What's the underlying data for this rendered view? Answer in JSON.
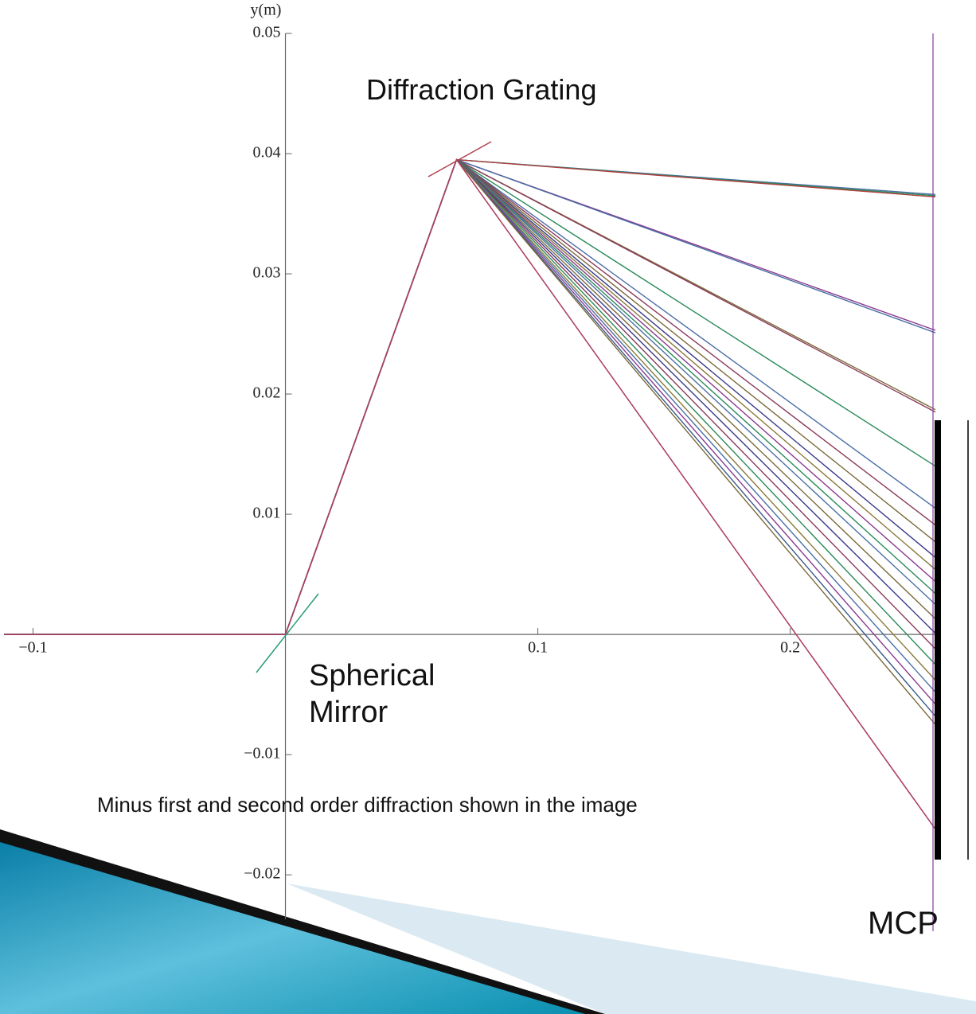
{
  "chart_data": {
    "type": "line",
    "y_label": "y(m)",
    "annotations": [
      "Diffraction Grating",
      "Spherical Mirror",
      "Minus first and second order diffraction shown in the image",
      "MCP"
    ],
    "xlim": [
      -0.1115,
      0.2575
    ],
    "ylim": [
      -0.0237,
      0.05
    ],
    "xticks": [
      {
        "value": -0.1,
        "label": "−0.1"
      },
      0.1,
      0.2
    ],
    "yticks": [
      {
        "value": -0.02,
        "label": "−0.02"
      },
      {
        "value": -0.01,
        "label": "−0.01"
      },
      0.01,
      0.02,
      0.03,
      0.04,
      0.05
    ],
    "x": [
      -0.1115,
      0,
      0.0678,
      0.2575
    ],
    "series": [
      {
        "color": "#4a6fa5",
        "values": [
          0,
          0,
          0.0395,
          0.0366
        ]
      },
      {
        "color": "#2a8a5a",
        "values": [
          0,
          0,
          0.0395,
          0.0365
        ]
      },
      {
        "color": "#b04040",
        "values": [
          0,
          0,
          0.0395,
          0.0364
        ]
      },
      {
        "color": "#8a3a8f",
        "values": [
          0,
          0,
          0.0395,
          0.0253
        ]
      },
      {
        "color": "#4a6fa5",
        "values": [
          0,
          0,
          0.0395,
          0.0251
        ]
      },
      {
        "color": "#7a6a3a",
        "values": [
          0,
          0,
          0.0395,
          0.0187
        ]
      },
      {
        "color": "#8a3a5a",
        "values": [
          0,
          0,
          0.0395,
          0.0185
        ]
      },
      {
        "color": "#2a8a5a",
        "values": [
          0,
          0,
          0.0395,
          0.014
        ]
      },
      {
        "color": "#4a6fa5",
        "values": [
          0,
          0,
          0.0395,
          0.0105
        ]
      },
      {
        "color": "#8a3a5a",
        "values": [
          0,
          0,
          0.0395,
          0.0091
        ]
      },
      {
        "color": "#7a6a3a",
        "values": [
          0,
          0,
          0.0395,
          0.0077
        ]
      },
      {
        "color": "#3a3a8a",
        "values": [
          0,
          0,
          0.0395,
          0.0064
        ]
      },
      {
        "color": "#8a7a3a",
        "values": [
          0,
          0,
          0.0395,
          0.0054
        ]
      },
      {
        "color": "#8a3a8f",
        "values": [
          0,
          0,
          0.0395,
          0.0044
        ]
      },
      {
        "color": "#2a8a5a",
        "values": [
          0,
          0,
          0.0395,
          0.0034
        ]
      },
      {
        "color": "#4a6fa5",
        "values": [
          0,
          0,
          0.0395,
          0.0025
        ]
      },
      {
        "color": "#7a6a3a",
        "values": [
          0,
          0,
          0.0395,
          0.0013
        ]
      },
      {
        "color": "#3a3a8a",
        "values": [
          0,
          0,
          0.0395,
          0.0001
        ]
      },
      {
        "color": "#8a3a5a",
        "values": [
          0,
          0,
          0.0395,
          -0.0012
        ]
      },
      {
        "color": "#2a8a5a",
        "values": [
          0,
          0,
          0.0395,
          -0.0025
        ]
      },
      {
        "color": "#8a7a3a",
        "values": [
          0,
          0,
          0.0395,
          -0.0038
        ]
      },
      {
        "color": "#4a6fa5",
        "values": [
          0,
          0,
          0.0395,
          -0.0048
        ]
      },
      {
        "color": "#8a3a8f",
        "values": [
          0,
          0,
          0.0395,
          -0.0058
        ]
      },
      {
        "color": "#3a5a8a",
        "values": [
          0,
          0,
          0.0395,
          -0.0068
        ]
      },
      {
        "color": "#7a6a3a",
        "values": [
          0,
          0,
          0.0395,
          -0.0075
        ]
      },
      {
        "color": "#8a3a8f",
        "values": [
          0,
          0,
          0.0395,
          -0.0162
        ]
      },
      {
        "color": "#b04060",
        "values": [
          0,
          0,
          0.0395,
          -0.0162
        ]
      }
    ]
  }
}
